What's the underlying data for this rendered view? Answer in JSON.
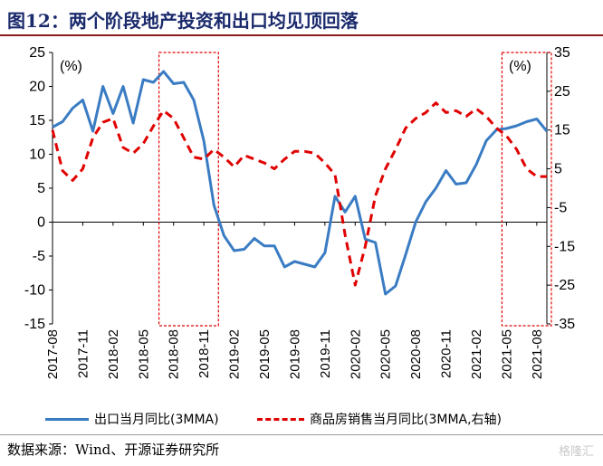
{
  "title": "图12：两个阶段地产投资和出口均见顶回落",
  "source": "数据来源：Wind、开源证券研究所",
  "watermark": "格隆汇",
  "chart_data": {
    "type": "line",
    "left_axis_unit": "(%)",
    "right_axis_unit": "(%)",
    "left_ylim": [
      -15,
      25
    ],
    "left_ticks": [
      25,
      20,
      15,
      10,
      5,
      0,
      -5,
      -10,
      -15
    ],
    "right_ylim": [
      -35,
      35
    ],
    "right_ticks": [
      35,
      25,
      15,
      5,
      -5,
      -15,
      -25,
      -35
    ],
    "x_tick_labels": [
      "2017-08",
      "2017-11",
      "2018-02",
      "2018-05",
      "2018-08",
      "2018-11",
      "2019-02",
      "2019-05",
      "2019-08",
      "2019-11",
      "2020-02",
      "2020-05",
      "2020-08",
      "2020-11",
      "2021-02",
      "2021-05",
      "2021-08"
    ],
    "x": [
      "2017-08",
      "2017-09",
      "2017-10",
      "2017-11",
      "2017-12",
      "2018-01",
      "2018-02",
      "2018-03",
      "2018-04",
      "2018-05",
      "2018-06",
      "2018-07",
      "2018-08",
      "2018-09",
      "2018-10",
      "2018-11",
      "2018-12",
      "2019-01",
      "2019-02",
      "2019-03",
      "2019-04",
      "2019-05",
      "2019-06",
      "2019-07",
      "2019-08",
      "2019-09",
      "2019-10",
      "2019-11",
      "2019-12",
      "2020-01",
      "2020-02",
      "2020-03",
      "2020-04",
      "2020-05",
      "2020-06",
      "2020-07",
      "2020-08",
      "2020-09",
      "2020-10",
      "2020-11",
      "2020-12",
      "2021-01",
      "2021-02",
      "2021-03",
      "2021-04",
      "2021-05",
      "2021-06",
      "2021-07",
      "2021-08",
      "2021-09"
    ],
    "series": [
      {
        "name": "出口当月同比(3MMA)",
        "axis": "left",
        "color": "#3a7cc3",
        "style": "solid",
        "values": [
          14.0,
          14.8,
          16.8,
          18.0,
          13.4,
          20.0,
          16.0,
          20.0,
          14.6,
          21.0,
          20.6,
          22.2,
          20.4,
          20.6,
          18.0,
          12.0,
          2.5,
          -2.0,
          -4.2,
          -4.0,
          -2.4,
          -3.5,
          -3.5,
          -6.6,
          -5.8,
          -6.2,
          -6.6,
          -4.5,
          3.8,
          1.5,
          3.8,
          -2.5,
          -3.0,
          -10.6,
          -9.4,
          -4.8,
          0.0,
          3.0,
          5.0,
          7.6,
          5.6,
          5.8,
          8.5,
          12.0,
          13.6,
          13.8,
          14.2,
          14.8,
          15.2,
          13.4
        ]
      },
      {
        "name": "商品房销售当月同比(3MMA,右轴)",
        "axis": "right",
        "color": "#e00000",
        "style": "dashed",
        "values": [
          15.0,
          4.5,
          2.0,
          5.0,
          13.0,
          17.0,
          18.0,
          10.5,
          9.0,
          11.5,
          16.0,
          20.0,
          18.0,
          13.0,
          8.0,
          7.5,
          10.0,
          8.0,
          5.5,
          8.5,
          7.5,
          6.5,
          5.0,
          7.5,
          9.5,
          9.5,
          9.0,
          6.5,
          3.5,
          -12.0,
          -25.0,
          -15.0,
          -2.0,
          5.0,
          10.0,
          15.5,
          18.0,
          19.5,
          22.0,
          19.5,
          20.0,
          18.5,
          20.5,
          18.5,
          15.5,
          13.5,
          10.0,
          5.0,
          3.0,
          3.0
        ]
      }
    ],
    "highlight_ranges": [
      {
        "start": "2018-07",
        "end": "2018-12",
        "color": "#e00000"
      },
      {
        "start": "2021-05",
        "end": "2021-09",
        "color": "#e00000"
      }
    ],
    "grid": false,
    "legend_position": "bottom"
  },
  "legend": {
    "items": [
      {
        "label": "出口当月同比(3MMA)"
      },
      {
        "label": "商品房销售当月同比(3MMA,右轴)"
      }
    ]
  }
}
